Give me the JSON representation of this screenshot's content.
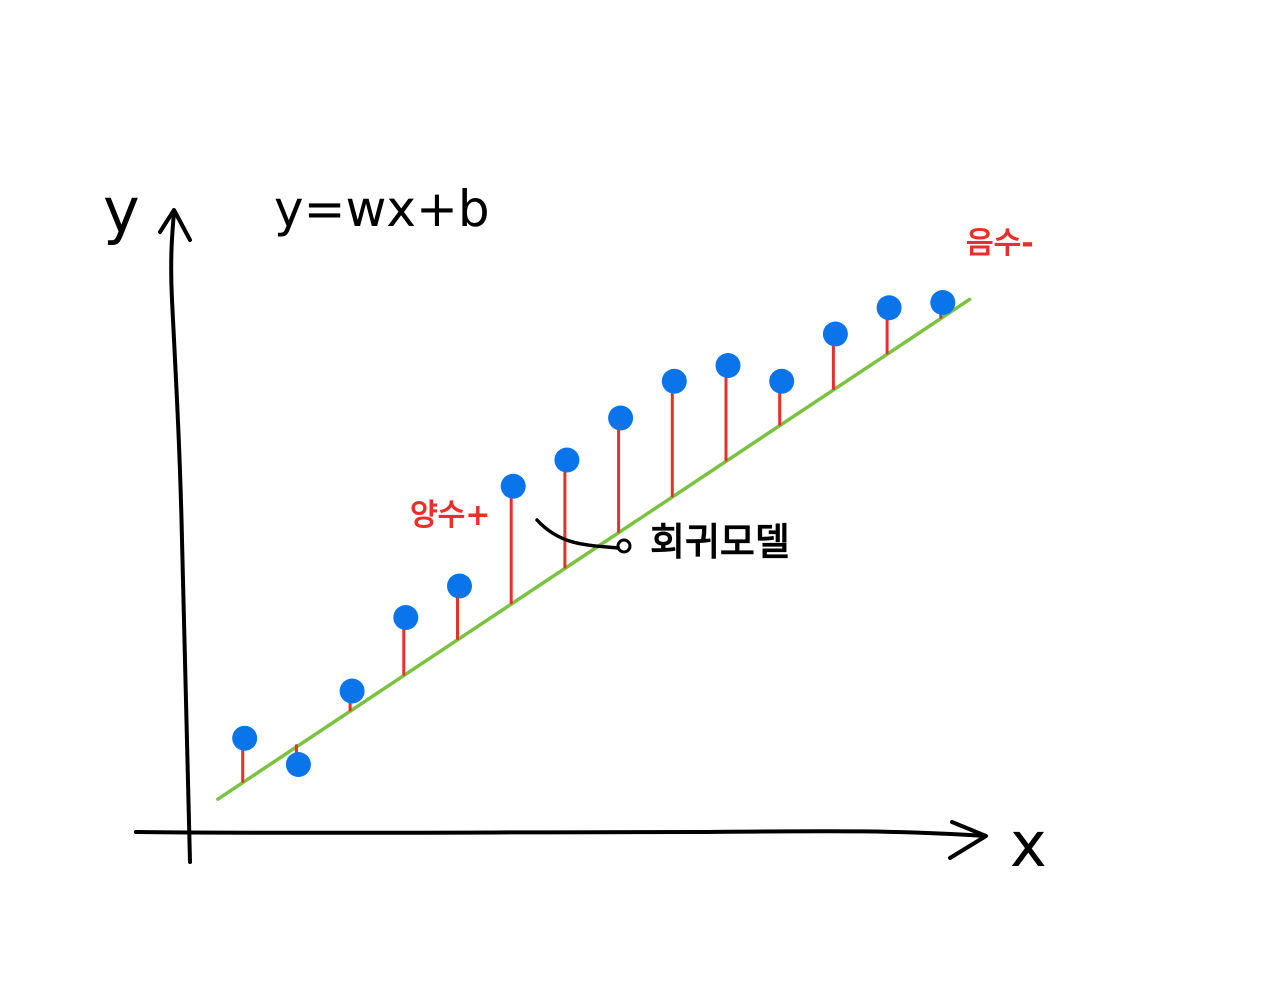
{
  "labels": {
    "y_axis": "y",
    "x_axis": "x",
    "equation": "y=wx+b",
    "positive": "양수+",
    "negative": "음수-",
    "model": "회귀모델"
  },
  "colors": {
    "axis": "#000000",
    "regression_line": "#7cc242",
    "residual": "#e8302a",
    "point": "#0a74ea"
  },
  "chart_data": {
    "type": "scatter",
    "points": [
      {
        "x": 1,
        "y": 1.5
      },
      {
        "x": 2,
        "y": 1.0
      },
      {
        "x": 3,
        "y": 2.4
      },
      {
        "x": 4,
        "y": 3.8
      },
      {
        "x": 5,
        "y": 4.4
      },
      {
        "x": 6,
        "y": 6.3
      },
      {
        "x": 7,
        "y": 6.8
      },
      {
        "x": 8,
        "y": 7.6
      },
      {
        "x": 9,
        "y": 8.3
      },
      {
        "x": 10,
        "y": 8.6
      },
      {
        "x": 11,
        "y": 8.3
      },
      {
        "x": 12,
        "y": 9.2
      },
      {
        "x": 13,
        "y": 9.7
      },
      {
        "x": 14,
        "y": 9.8
      }
    ],
    "regression_line": {
      "x_start": 0,
      "x_end": 15
    }
  }
}
